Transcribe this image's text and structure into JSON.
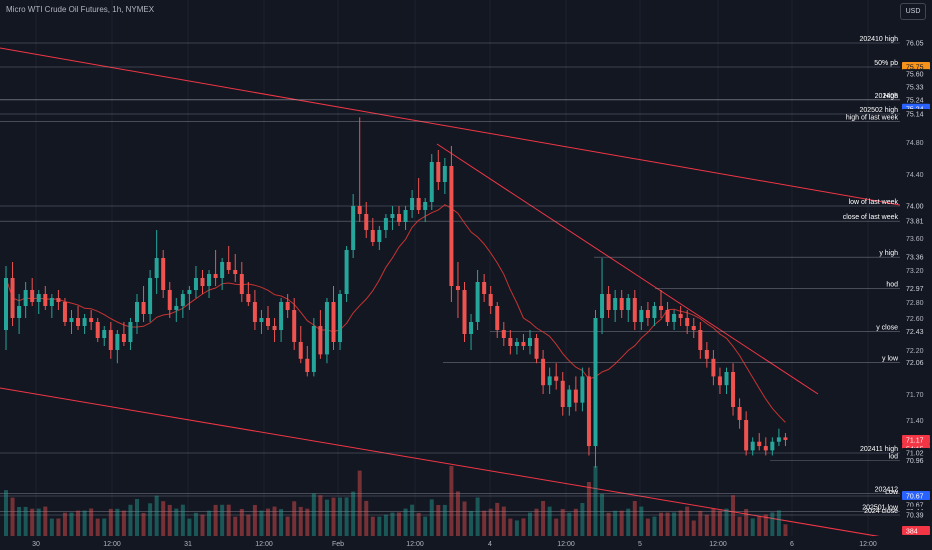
{
  "header": {
    "title": "Micro WTI Crude Oil Futures, 1h, NYMEX",
    "currency_button": "USD"
  },
  "colors": {
    "background": "#131722",
    "up": "#26a69a",
    "down": "#ef5350",
    "trendline": "#f23645",
    "level_line": "#b2b5be",
    "ma_up": "#4caf50",
    "ma_down": "#e53935"
  },
  "chart_data": {
    "type": "candlestick",
    "symbol": "Micro WTI Crude Oil Futures",
    "interval": "1h",
    "exchange": "NYMEX",
    "x_ticks": [
      "30",
      "12:00",
      "31",
      "12:00",
      "Feb",
      "12:00",
      "4",
      "12:00",
      "5",
      "12:00",
      "6",
      "12:00"
    ],
    "y_ticks": [
      74.8,
      74.4,
      74.0,
      73.6,
      73.2,
      72.8,
      72.6,
      72.2,
      71.7,
      71.4
    ],
    "price_tags": [
      {
        "value": "76.05",
        "style": "plain"
      },
      {
        "value": "75.75",
        "style": "orange"
      },
      {
        "value": "75.60",
        "style": "plain"
      },
      {
        "value": "75.33",
        "style": "plain"
      },
      {
        "value": "75.24",
        "style": "plain"
      },
      {
        "value": "75.24",
        "style": "blue"
      },
      {
        "value": "75.14",
        "style": "plain"
      },
      {
        "value": "74.00",
        "style": "plain"
      },
      {
        "value": "73.81",
        "style": "plain"
      },
      {
        "value": "73.36",
        "style": "plain"
      },
      {
        "value": "72.97",
        "style": "plain"
      },
      {
        "value": "72.43",
        "style": "plain"
      },
      {
        "value": "72.06",
        "style": "plain"
      },
      {
        "value": "71.17",
        "style": "red"
      },
      {
        "value": "54:15",
        "style": "red"
      },
      {
        "value": "71.02",
        "style": "plain"
      },
      {
        "value": "70.96",
        "style": "plain"
      },
      {
        "value": "70.69",
        "style": "plain"
      },
      {
        "value": "70.67",
        "style": "blue"
      },
      {
        "value": "70.67",
        "style": "plain"
      },
      {
        "value": "70.44",
        "style": "plain"
      },
      {
        "value": "70.39",
        "style": "plain"
      },
      {
        "value": "384",
        "style": "red"
      }
    ],
    "levels": [
      {
        "label": "202410 high",
        "price": 76.05
      },
      {
        "label": "50% pb",
        "price": 75.75
      },
      {
        "label": "202408",
        "price": 75.24
      },
      {
        "label": "High",
        "price": 75.24
      },
      {
        "label": "202502 high",
        "price": 75.14
      },
      {
        "label": "high of last week",
        "price": 75.05
      },
      {
        "label": "low of last week",
        "price": 74.0
      },
      {
        "label": "close of last week",
        "price": 73.81
      },
      {
        "label": "y high",
        "price": 73.36
      },
      {
        "label": "hod",
        "price": 72.97
      },
      {
        "label": "y close",
        "price": 72.43
      },
      {
        "label": "y low",
        "price": 72.06
      },
      {
        "label": "202411 high",
        "price": 71.02
      },
      {
        "label": "lod",
        "price": 70.96
      },
      {
        "label": "202412",
        "price": 70.69
      },
      {
        "label": "Low",
        "price": 70.67
      },
      {
        "label": "202501 low",
        "price": 70.44
      },
      {
        "label": "2024 close",
        "price": 70.39
      }
    ],
    "last_price": 71.17,
    "countdown": "54:15",
    "volume_last": 384,
    "candles": [
      {
        "o": 72.45,
        "h": 73.25,
        "l": 72.2,
        "c": 73.1
      },
      {
        "o": 73.1,
        "h": 73.3,
        "l": 72.5,
        "c": 72.6
      },
      {
        "o": 72.6,
        "h": 72.9,
        "l": 72.4,
        "c": 72.75
      },
      {
        "o": 72.75,
        "h": 73.05,
        "l": 72.6,
        "c": 72.95
      },
      {
        "o": 72.95,
        "h": 73.1,
        "l": 72.75,
        "c": 72.8
      },
      {
        "o": 72.8,
        "h": 72.95,
        "l": 72.65,
        "c": 72.9
      },
      {
        "o": 72.9,
        "h": 73.0,
        "l": 72.7,
        "c": 72.75
      },
      {
        "o": 72.75,
        "h": 72.9,
        "l": 72.6,
        "c": 72.85
      },
      {
        "o": 72.85,
        "h": 72.95,
        "l": 72.7,
        "c": 72.8
      },
      {
        "o": 72.8,
        "h": 72.85,
        "l": 72.5,
        "c": 72.55
      },
      {
        "o": 72.55,
        "h": 72.7,
        "l": 72.4,
        "c": 72.6
      },
      {
        "o": 72.6,
        "h": 72.75,
        "l": 72.45,
        "c": 72.5
      },
      {
        "o": 72.5,
        "h": 72.65,
        "l": 72.4,
        "c": 72.6
      },
      {
        "o": 72.6,
        "h": 72.7,
        "l": 72.45,
        "c": 72.55
      },
      {
        "o": 72.55,
        "h": 72.6,
        "l": 72.3,
        "c": 72.35
      },
      {
        "o": 72.35,
        "h": 72.5,
        "l": 72.25,
        "c": 72.45
      },
      {
        "o": 72.45,
        "h": 72.55,
        "l": 72.1,
        "c": 72.2
      },
      {
        "o": 72.2,
        "h": 72.45,
        "l": 72.05,
        "c": 72.4
      },
      {
        "o": 72.4,
        "h": 72.55,
        "l": 72.25,
        "c": 72.3
      },
      {
        "o": 72.3,
        "h": 72.6,
        "l": 72.2,
        "c": 72.55
      },
      {
        "o": 72.55,
        "h": 72.9,
        "l": 72.4,
        "c": 72.8
      },
      {
        "o": 72.8,
        "h": 73.0,
        "l": 72.55,
        "c": 72.65
      },
      {
        "o": 72.65,
        "h": 73.2,
        "l": 72.55,
        "c": 73.1
      },
      {
        "o": 73.1,
        "h": 73.7,
        "l": 72.9,
        "c": 73.35
      },
      {
        "o": 73.35,
        "h": 73.45,
        "l": 72.85,
        "c": 72.95
      },
      {
        "o": 72.95,
        "h": 73.05,
        "l": 72.6,
        "c": 72.7
      },
      {
        "o": 72.7,
        "h": 72.85,
        "l": 72.55,
        "c": 72.75
      },
      {
        "o": 72.75,
        "h": 72.95,
        "l": 72.6,
        "c": 72.9
      },
      {
        "o": 72.9,
        "h": 73.0,
        "l": 72.7,
        "c": 72.95
      },
      {
        "o": 72.95,
        "h": 73.25,
        "l": 72.85,
        "c": 73.1
      },
      {
        "o": 73.1,
        "h": 73.2,
        "l": 72.9,
        "c": 73.0
      },
      {
        "o": 73.0,
        "h": 73.2,
        "l": 72.85,
        "c": 73.15
      },
      {
        "o": 73.15,
        "h": 73.45,
        "l": 73.0,
        "c": 73.1
      },
      {
        "o": 73.1,
        "h": 73.35,
        "l": 72.95,
        "c": 73.3
      },
      {
        "o": 73.3,
        "h": 73.5,
        "l": 73.15,
        "c": 73.2
      },
      {
        "o": 73.2,
        "h": 73.4,
        "l": 73.05,
        "c": 73.15
      },
      {
        "o": 73.15,
        "h": 73.3,
        "l": 72.8,
        "c": 72.9
      },
      {
        "o": 72.9,
        "h": 73.05,
        "l": 72.75,
        "c": 72.8
      },
      {
        "o": 72.8,
        "h": 72.95,
        "l": 72.45,
        "c": 72.55
      },
      {
        "o": 72.55,
        "h": 72.7,
        "l": 72.4,
        "c": 72.6
      },
      {
        "o": 72.6,
        "h": 72.75,
        "l": 72.45,
        "c": 72.5
      },
      {
        "o": 72.5,
        "h": 72.6,
        "l": 72.3,
        "c": 72.45
      },
      {
        "o": 72.45,
        "h": 72.85,
        "l": 72.3,
        "c": 72.8
      },
      {
        "o": 72.8,
        "h": 72.9,
        "l": 72.6,
        "c": 72.7
      },
      {
        "o": 72.7,
        "h": 72.85,
        "l": 72.2,
        "c": 72.3
      },
      {
        "o": 72.3,
        "h": 72.5,
        "l": 72.05,
        "c": 72.1
      },
      {
        "o": 72.1,
        "h": 72.25,
        "l": 71.9,
        "c": 71.95
      },
      {
        "o": 71.95,
        "h": 72.6,
        "l": 71.9,
        "c": 72.5
      },
      {
        "o": 72.5,
        "h": 72.7,
        "l": 72.1,
        "c": 72.15
      },
      {
        "o": 72.15,
        "h": 72.85,
        "l": 72.05,
        "c": 72.8
      },
      {
        "o": 72.8,
        "h": 73.0,
        "l": 72.2,
        "c": 72.3
      },
      {
        "o": 72.3,
        "h": 72.95,
        "l": 72.2,
        "c": 72.9
      },
      {
        "o": 72.9,
        "h": 73.5,
        "l": 72.8,
        "c": 73.45
      },
      {
        "o": 73.45,
        "h": 74.15,
        "l": 73.35,
        "c": 74.0
      },
      {
        "o": 74.0,
        "h": 75.1,
        "l": 73.8,
        "c": 73.9
      },
      {
        "o": 73.9,
        "h": 74.05,
        "l": 73.6,
        "c": 73.7
      },
      {
        "o": 73.7,
        "h": 73.85,
        "l": 73.5,
        "c": 73.55
      },
      {
        "o": 73.55,
        "h": 73.75,
        "l": 73.45,
        "c": 73.7
      },
      {
        "o": 73.7,
        "h": 73.9,
        "l": 73.6,
        "c": 73.85
      },
      {
        "o": 73.85,
        "h": 74.0,
        "l": 73.7,
        "c": 73.9
      },
      {
        "o": 73.9,
        "h": 74.0,
        "l": 73.75,
        "c": 73.8
      },
      {
        "o": 73.8,
        "h": 74.0,
        "l": 73.7,
        "c": 73.95
      },
      {
        "o": 73.95,
        "h": 74.2,
        "l": 73.85,
        "c": 74.1
      },
      {
        "o": 74.1,
        "h": 74.35,
        "l": 73.9,
        "c": 73.95
      },
      {
        "o": 73.95,
        "h": 74.1,
        "l": 73.8,
        "c": 74.05
      },
      {
        "o": 74.05,
        "h": 74.65,
        "l": 73.95,
        "c": 74.55
      },
      {
        "o": 74.55,
        "h": 74.7,
        "l": 74.2,
        "c": 74.3
      },
      {
        "o": 74.3,
        "h": 74.6,
        "l": 74.15,
        "c": 74.5
      },
      {
        "o": 74.5,
        "h": 74.75,
        "l": 72.8,
        "c": 73.0
      },
      {
        "o": 73.0,
        "h": 73.3,
        "l": 72.6,
        "c": 72.95
      },
      {
        "o": 72.95,
        "h": 73.05,
        "l": 72.3,
        "c": 72.4
      },
      {
        "o": 72.4,
        "h": 72.65,
        "l": 72.2,
        "c": 72.55
      },
      {
        "o": 72.55,
        "h": 73.2,
        "l": 72.45,
        "c": 73.05
      },
      {
        "o": 73.05,
        "h": 73.15,
        "l": 72.8,
        "c": 72.9
      },
      {
        "o": 72.9,
        "h": 73.0,
        "l": 72.65,
        "c": 72.75
      },
      {
        "o": 72.75,
        "h": 72.8,
        "l": 72.35,
        "c": 72.45
      },
      {
        "o": 72.45,
        "h": 72.55,
        "l": 72.25,
        "c": 72.35
      },
      {
        "o": 72.35,
        "h": 72.45,
        "l": 72.15,
        "c": 72.25
      },
      {
        "o": 72.25,
        "h": 72.35,
        "l": 72.15,
        "c": 72.3
      },
      {
        "o": 72.3,
        "h": 72.4,
        "l": 72.2,
        "c": 72.25
      },
      {
        "o": 72.25,
        "h": 72.45,
        "l": 72.15,
        "c": 72.35
      },
      {
        "o": 72.35,
        "h": 72.4,
        "l": 72.05,
        "c": 72.1
      },
      {
        "o": 72.1,
        "h": 72.2,
        "l": 71.7,
        "c": 71.8
      },
      {
        "o": 71.8,
        "h": 72.0,
        "l": 71.7,
        "c": 71.9
      },
      {
        "o": 71.9,
        "h": 72.05,
        "l": 71.75,
        "c": 71.85
      },
      {
        "o": 71.85,
        "h": 71.95,
        "l": 71.45,
        "c": 71.55
      },
      {
        "o": 71.55,
        "h": 71.8,
        "l": 71.45,
        "c": 71.75
      },
      {
        "o": 71.75,
        "h": 71.9,
        "l": 71.5,
        "c": 71.6
      },
      {
        "o": 71.6,
        "h": 72.0,
        "l": 71.5,
        "c": 71.9
      },
      {
        "o": 71.9,
        "h": 72.0,
        "l": 71.0,
        "c": 71.1
      },
      {
        "o": 71.1,
        "h": 72.7,
        "l": 70.9,
        "c": 72.6
      },
      {
        "o": 72.6,
        "h": 73.35,
        "l": 72.4,
        "c": 72.9
      },
      {
        "o": 72.9,
        "h": 73.0,
        "l": 72.6,
        "c": 72.7
      },
      {
        "o": 72.7,
        "h": 72.95,
        "l": 72.55,
        "c": 72.85
      },
      {
        "o": 72.85,
        "h": 72.95,
        "l": 72.6,
        "c": 72.7
      },
      {
        "o": 72.7,
        "h": 72.9,
        "l": 72.55,
        "c": 72.85
      },
      {
        "o": 72.85,
        "h": 72.95,
        "l": 72.45,
        "c": 72.55
      },
      {
        "o": 72.55,
        "h": 72.75,
        "l": 72.45,
        "c": 72.7
      },
      {
        "o": 72.7,
        "h": 72.8,
        "l": 72.5,
        "c": 72.6
      },
      {
        "o": 72.6,
        "h": 72.8,
        "l": 72.5,
        "c": 72.75
      },
      {
        "o": 72.75,
        "h": 72.95,
        "l": 72.6,
        "c": 72.7
      },
      {
        "o": 72.7,
        "h": 72.8,
        "l": 72.5,
        "c": 72.55
      },
      {
        "o": 72.55,
        "h": 72.7,
        "l": 72.45,
        "c": 72.65
      },
      {
        "o": 72.65,
        "h": 72.75,
        "l": 72.5,
        "c": 72.6
      },
      {
        "o": 72.6,
        "h": 72.7,
        "l": 72.4,
        "c": 72.5
      },
      {
        "o": 72.5,
        "h": 72.6,
        "l": 72.35,
        "c": 72.45
      },
      {
        "o": 72.45,
        "h": 72.55,
        "l": 72.1,
        "c": 72.2
      },
      {
        "o": 72.2,
        "h": 72.3,
        "l": 72.0,
        "c": 72.1
      },
      {
        "o": 72.1,
        "h": 72.2,
        "l": 71.8,
        "c": 71.9
      },
      {
        "o": 71.9,
        "h": 72.0,
        "l": 71.7,
        "c": 71.8
      },
      {
        "o": 71.8,
        "h": 72.0,
        "l": 71.7,
        "c": 71.95
      },
      {
        "o": 71.95,
        "h": 72.05,
        "l": 71.45,
        "c": 71.55
      },
      {
        "o": 71.55,
        "h": 71.65,
        "l": 71.3,
        "c": 71.4
      },
      {
        "o": 71.4,
        "h": 71.5,
        "l": 71.0,
        "c": 71.05
      },
      {
        "o": 71.05,
        "h": 71.2,
        "l": 71.0,
        "c": 71.15
      },
      {
        "o": 71.15,
        "h": 71.25,
        "l": 71.05,
        "c": 71.1
      },
      {
        "o": 71.1,
        "h": 71.2,
        "l": 71.0,
        "c": 71.05
      },
      {
        "o": 71.05,
        "h": 71.2,
        "l": 71.0,
        "c": 71.15
      },
      {
        "o": 71.15,
        "h": 71.3,
        "l": 71.1,
        "c": 71.2
      },
      {
        "o": 71.2,
        "h": 71.25,
        "l": 71.1,
        "c": 71.17
      }
    ]
  }
}
